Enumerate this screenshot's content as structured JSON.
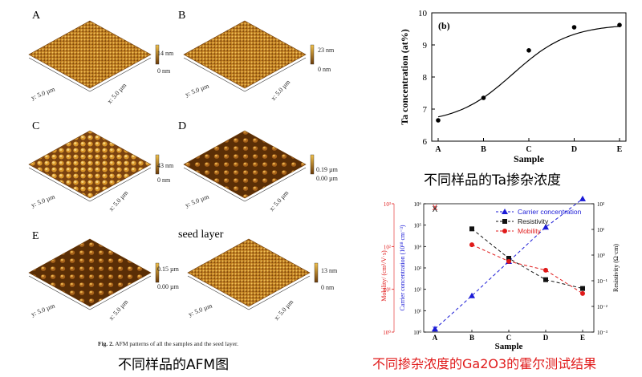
{
  "afm": {
    "panels": [
      {
        "letter": "A",
        "z_max": "14 nm",
        "z_min": "0 nm",
        "y_axis": "y: 5.0 µm",
        "x_axis": "x: 5.0 µm"
      },
      {
        "letter": "B",
        "z_max": "23 nm",
        "z_min": "0 nm",
        "y_axis": "y: 5.0 µm",
        "x_axis": "x: 5.0 µm"
      },
      {
        "letter": "C",
        "z_max": "43 nm",
        "z_min": "0 nm",
        "y_axis": "y: 5.0 µm",
        "x_axis": "x: 5.0 µm"
      },
      {
        "letter": "D",
        "z_max": "0.19 µm",
        "z_min": "0.00 µm",
        "y_axis": "y: 5.0 µm",
        "x_axis": "x: 5.0 µm"
      },
      {
        "letter": "E",
        "z_max": "0.15 µm",
        "z_min": "0.00 µm",
        "y_axis": "y: 5.0 µm",
        "x_axis": "x: 5.0 µm"
      },
      {
        "letter": "seed layer",
        "z_max": "13 nm",
        "z_min": "0 nm",
        "y_axis": "y: 5.0 µm",
        "x_axis": "x: 5.0 µm"
      }
    ],
    "fig_caption_bold": "Fig. 2.",
    "fig_caption_text": "AFM patterns of all the samples and the seed layer.",
    "caption_cn": "不同样品的AFM图"
  },
  "chart_data": [
    {
      "type": "scatter",
      "panel_label": "(b)",
      "categories": [
        "A",
        "B",
        "C",
        "D",
        "E"
      ],
      "values": [
        6.65,
        7.35,
        8.83,
        9.55,
        9.62
      ],
      "xlabel": "Sample",
      "ylabel": "Ta concentration (at%)",
      "ylim": [
        6,
        10
      ],
      "yticks": [
        "6",
        "7",
        "8",
        "9",
        "10"
      ],
      "fit_curve": "sigmoid",
      "caption_cn": "不同样品的Ta掺杂浓度"
    },
    {
      "type": "line",
      "categories": [
        "A",
        "B",
        "C",
        "D",
        "E"
      ],
      "xlabel": "Sample",
      "left_label": "Mobility/ (cm²/V·s)",
      "mid_label": "Carrier concentration (10¹⁸ cm⁻³)",
      "right_label": "Resistivity (Ω·cm)",
      "left_ticks": [
        "10⁰",
        "10¹",
        "10²",
        "10³"
      ],
      "mid_ticks": [
        "10⁰",
        "10¹",
        "10²",
        "10³",
        "10⁴",
        "10⁵",
        "10⁶"
      ],
      "right_ticks": [
        "10⁻³",
        "10⁻²",
        "10⁻¹",
        "10⁰",
        "10¹",
        "10²"
      ],
      "series": [
        {
          "name": "Carrier concentration",
          "axis": "mid",
          "color": "#1a1ad6",
          "marker": "triangle",
          "values": [
            1.4,
            50,
            2000,
            80000,
            1700000
          ]
        },
        {
          "name": "Resistivity",
          "axis": "right",
          "color": "#111111",
          "marker": "square",
          "values": [
            null,
            10.5,
            0.75,
            0.11,
            0.05
          ]
        },
        {
          "name": "Mobility",
          "axis": "left",
          "color": "#e01a1a",
          "marker": "circle",
          "values": [
            null,
            110,
            45,
            28,
            8
          ]
        }
      ],
      "a_markers": [
        {
          "name": "Mobility",
          "symbol": "X",
          "color": "#e01a1a"
        },
        {
          "name": "Resistivity",
          "symbol": "X",
          "color": "#111111"
        },
        {
          "name": "Carrier concentration",
          "symbol": "X",
          "color": "#1a1ad6"
        }
      ],
      "caption_cn": "不同掺杂浓度的Ga2O3的霍尔测试结果",
      "caption_color": "#e01a1a"
    }
  ]
}
